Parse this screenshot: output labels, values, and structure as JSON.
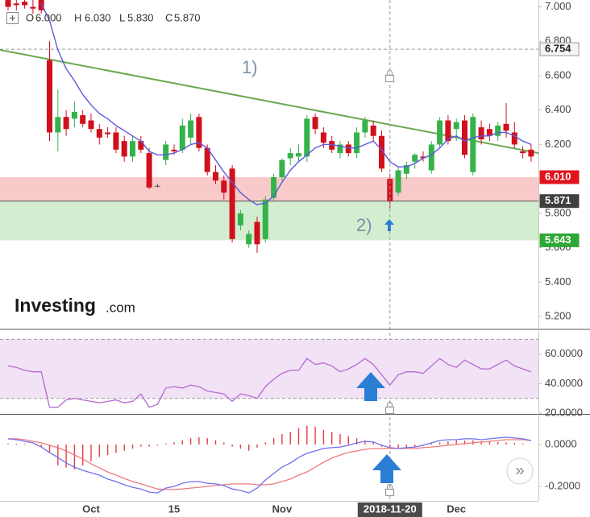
{
  "chart_data": [
    {
      "type": "candlestick",
      "readout": {
        "labels": [
          "O",
          "H",
          "L",
          "C"
        ],
        "values": [
          6.0,
          6.03,
          5.83,
          5.87
        ],
        "value_labels": [
          "6.000",
          "6.030",
          "5.830",
          "5.870"
        ]
      },
      "logo": [
        "Investing",
        ".com"
      ],
      "annotations": [
        "1)",
        "2)"
      ],
      "scroll_button": "»",
      "categories": [
        null,
        null,
        null,
        null,
        null,
        null,
        null,
        null,
        null,
        null,
        "Oct",
        null,
        null,
        null,
        null,
        null,
        null,
        null,
        null,
        null,
        "15",
        null,
        null,
        null,
        null,
        null,
        null,
        null,
        null,
        null,
        null,
        null,
        null,
        "Nov",
        null,
        null,
        null,
        null,
        null,
        null,
        null,
        null,
        null,
        null,
        null,
        null,
        "2018-11-20",
        null,
        null,
        null,
        null,
        null,
        null,
        null,
        "Dec",
        null,
        null,
        null,
        null,
        null,
        null,
        null,
        null,
        null
      ],
      "open": [
        7.06,
        7.02,
        7.03,
        7.0,
        7.04,
        6.69,
        6.27,
        6.36,
        6.35,
        6.37,
        6.34,
        6.29,
        6.27,
        6.27,
        6.22,
        6.13,
        6.22,
        6.15,
        5.96,
        6.11,
        6.17,
        6.17,
        6.24,
        6.36,
        6.18,
        6.04,
        5.99,
        6.06,
        5.73,
        5.62,
        5.75,
        5.65,
        5.89,
        6.01,
        6.12,
        6.13,
        6.13,
        6.36,
        6.27,
        6.22,
        6.15,
        6.2,
        6.15,
        6.27,
        6.31,
        6.25,
        6.0,
        5.92,
        6.03,
        6.1,
        6.13,
        6.05,
        6.2,
        6.34,
        6.29,
        6.34,
        6.04,
        6.3,
        6.29,
        6.25,
        6.32,
        6.27,
        6.16,
        6.17
      ],
      "high": [
        7.08,
        7.05,
        7.06,
        7.04,
        7.06,
        6.8,
        6.52,
        6.4,
        6.45,
        6.4,
        6.38,
        6.32,
        6.3,
        6.3,
        6.25,
        6.25,
        6.25,
        6.18,
        5.97,
        6.22,
        6.2,
        6.35,
        6.38,
        6.38,
        6.2,
        6.08,
        6.02,
        6.08,
        5.82,
        5.7,
        5.78,
        5.9,
        6.03,
        6.12,
        6.18,
        6.2,
        6.37,
        6.38,
        6.3,
        6.25,
        6.22,
        6.22,
        6.3,
        6.36,
        6.34,
        6.28,
        6.03,
        6.07,
        6.1,
        6.15,
        6.16,
        6.22,
        6.36,
        6.37,
        6.35,
        6.37,
        6.38,
        6.34,
        6.32,
        6.33,
        6.44,
        6.33,
        6.19,
        6.2
      ],
      "low": [
        6.98,
        6.98,
        6.99,
        6.96,
        6.96,
        6.22,
        6.16,
        6.25,
        6.3,
        6.3,
        6.27,
        6.2,
        6.24,
        6.15,
        6.1,
        6.1,
        6.15,
        5.94,
        5.95,
        6.08,
        6.14,
        6.15,
        6.2,
        6.16,
        6.02,
        5.97,
        5.88,
        5.63,
        5.7,
        5.6,
        5.57,
        5.63,
        5.87,
        5.99,
        6.08,
        6.1,
        6.1,
        6.26,
        6.18,
        6.15,
        6.12,
        6.13,
        6.12,
        6.24,
        6.22,
        6.04,
        5.83,
        5.9,
        6.0,
        6.06,
        6.1,
        6.03,
        6.18,
        6.2,
        6.22,
        6.12,
        6.02,
        6.2,
        6.22,
        6.22,
        6.24,
        6.18,
        6.12,
        6.1
      ],
      "close": [
        7.0,
        7.01,
        7.01,
        6.99,
        6.98,
        6.27,
        6.36,
        6.29,
        6.39,
        6.32,
        6.29,
        6.24,
        6.26,
        6.17,
        6.13,
        6.22,
        6.17,
        5.95,
        5.96,
        6.2,
        6.16,
        6.31,
        6.34,
        6.18,
        6.04,
        5.99,
        5.92,
        5.65,
        5.8,
        5.68,
        5.62,
        5.88,
        6.01,
        6.11,
        6.15,
        6.15,
        6.35,
        6.29,
        6.21,
        6.17,
        6.2,
        6.15,
        6.27,
        6.34,
        6.25,
        6.06,
        5.87,
        6.05,
        6.08,
        6.14,
        6.12,
        6.2,
        6.34,
        6.22,
        6.33,
        6.14,
        6.36,
        6.23,
        6.25,
        6.31,
        6.28,
        6.2,
        6.15,
        6.13
      ],
      "up_color": "#35b34a",
      "down_color": "#d0101c",
      "flat_color": "#555555",
      "moving_average": {
        "color": "#5b5bdc",
        "values": [
          null,
          null,
          null,
          null,
          7.02,
          6.92,
          6.75,
          6.64,
          6.57,
          6.49,
          6.43,
          6.38,
          6.35,
          6.31,
          6.28,
          6.25,
          6.22,
          6.16,
          6.14,
          6.14,
          6.15,
          6.17,
          6.2,
          6.21,
          6.18,
          6.11,
          6.04,
          5.98,
          5.92,
          5.88,
          5.85,
          5.86,
          5.9,
          5.98,
          6.05,
          6.1,
          6.14,
          6.18,
          6.2,
          6.2,
          6.19,
          6.18,
          6.18,
          6.2,
          6.22,
          6.17,
          6.1,
          6.07,
          6.07,
          6.09,
          6.12,
          6.14,
          6.18,
          6.23,
          6.25,
          6.22,
          6.24,
          6.25,
          6.25,
          6.27,
          6.27,
          6.25,
          6.22,
          6.2
        ]
      },
      "trendline": {
        "color": "#6aa84f",
        "start": 6.75,
        "end": 6.15
      },
      "zones": [
        {
          "from": 6.01,
          "to": 5.871,
          "color": "#f9caca"
        },
        {
          "from": 5.871,
          "to": 5.643,
          "color": "#d3edd1"
        }
      ],
      "levels": [
        {
          "value": 6.754,
          "label": "6.754",
          "box_color": "#f4f4f4",
          "text_color": "#222222",
          "line": "dashed"
        },
        {
          "value": 6.01,
          "label": "6.010",
          "box_color": "#e0141e",
          "text_color": "#ffffff",
          "line": "none"
        },
        {
          "value": 5.871,
          "label": "5.871",
          "box_color": "#3f3f3f",
          "text_color": "#ffffff",
          "line": "solid"
        },
        {
          "value": 5.643,
          "label": "5.643",
          "box_color": "#2ea836",
          "text_color": "#ffffff",
          "line": "none"
        }
      ],
      "ylim": [
        5.13,
        7.04
      ],
      "yticks": [
        {
          "value": 5.2,
          "label": "5.200"
        },
        {
          "value": 5.4,
          "label": "5.400"
        },
        {
          "value": 5.6,
          "label": "5.600"
        },
        {
          "value": 5.8,
          "label": "5.800"
        },
        {
          "value": 6.0,
          "label": "6.000"
        },
        {
          "value": 6.2,
          "label": "6.200"
        },
        {
          "value": 6.4,
          "label": "6.400"
        },
        {
          "value": 6.6,
          "label": "6.600"
        },
        {
          "value": 6.8,
          "label": "6.800"
        },
        {
          "value": 7.0,
          "label": "7.000"
        }
      ]
    },
    {
      "type": "line",
      "color": "#b46ad0",
      "values": [
        52,
        51,
        49,
        48,
        48,
        24,
        24,
        29,
        30,
        29,
        28,
        27,
        28,
        29,
        27,
        28,
        33,
        24,
        26,
        37,
        38,
        37,
        39,
        38,
        35,
        34,
        33,
        28,
        33,
        32,
        30,
        38,
        43,
        47,
        49,
        49,
        57,
        53,
        54,
        52,
        48,
        50,
        53,
        57,
        53,
        46,
        39,
        46,
        48,
        48,
        47,
        52,
        57,
        53,
        51,
        56,
        53,
        50,
        50,
        53,
        56,
        52,
        50,
        48
      ],
      "band": [
        30,
        70
      ],
      "band_color": "#f2e2f6",
      "ylim": [
        19.5,
        76.2
      ],
      "yticks": [
        {
          "value": 20,
          "label": "20.0000"
        },
        {
          "value": 40,
          "label": "40.0000"
        },
        {
          "value": 60,
          "label": "60.0000"
        }
      ]
    },
    {
      "type": "macd",
      "macd": {
        "color": "#7070f0",
        "values": [
          0.027,
          0.023,
          0.015,
          0.008,
          -0.012,
          -0.038,
          -0.062,
          -0.088,
          -0.108,
          -0.123,
          -0.135,
          -0.146,
          -0.165,
          -0.177,
          -0.192,
          -0.204,
          -0.212,
          -0.227,
          -0.231,
          -0.208,
          -0.2,
          -0.185,
          -0.177,
          -0.177,
          -0.185,
          -0.188,
          -0.196,
          -0.212,
          -0.219,
          -0.231,
          -0.208,
          -0.169,
          -0.138,
          -0.108,
          -0.088,
          -0.062,
          -0.042,
          -0.031,
          -0.019,
          -0.015,
          -0.012,
          -0.004,
          0.008,
          0.015,
          0.012,
          -0.004,
          -0.015,
          -0.019,
          -0.015,
          -0.012,
          -0.004,
          0.008,
          0.019,
          0.023,
          0.023,
          0.027,
          0.027,
          0.023,
          0.027,
          0.031,
          0.035,
          0.031,
          0.027,
          0.019
        ]
      },
      "signal": {
        "color": "#f07a7a",
        "values": [
          0.027,
          0.027,
          0.023,
          0.015,
          0.008,
          -0.004,
          -0.015,
          -0.031,
          -0.05,
          -0.069,
          -0.092,
          -0.112,
          -0.131,
          -0.146,
          -0.162,
          -0.177,
          -0.188,
          -0.2,
          -0.212,
          -0.215,
          -0.215,
          -0.212,
          -0.208,
          -0.204,
          -0.2,
          -0.196,
          -0.192,
          -0.188,
          -0.188,
          -0.188,
          -0.192,
          -0.192,
          -0.188,
          -0.177,
          -0.165,
          -0.146,
          -0.131,
          -0.108,
          -0.085,
          -0.065,
          -0.05,
          -0.038,
          -0.031,
          -0.023,
          -0.019,
          -0.019,
          -0.019,
          -0.019,
          -0.019,
          -0.019,
          -0.015,
          -0.012,
          -0.008,
          -0.004,
          0,
          0.004,
          0.008,
          0.012,
          0.015,
          0.019,
          0.023,
          0.023,
          0.023,
          0.019
        ]
      },
      "histogram": {
        "color": "#e8404a",
        "values": [
          0.005,
          0.004,
          0.003,
          0,
          -0.01,
          -0.04,
          -0.1,
          -0.11,
          -0.12,
          -0.1,
          -0.08,
          -0.06,
          -0.05,
          -0.04,
          -0.03,
          -0.02,
          -0.01,
          -0.01,
          -0.005,
          0.005,
          0.01,
          0.02,
          0.03,
          0.035,
          0.03,
          0.02,
          0.01,
          -0.01,
          -0.02,
          -0.03,
          -0.015,
          0.01,
          0.03,
          0.05,
          0.06,
          0.08,
          0.09,
          0.085,
          0.07,
          0.06,
          0.05,
          0.04,
          0.03,
          0.02,
          0.01,
          -0.01,
          -0.015,
          -0.02,
          -0.015,
          -0.01,
          -0.005,
          0.005,
          0.01,
          0.015,
          0.02,
          0.02,
          0.02,
          0.015,
          0.015,
          0.012,
          0.01,
          0.008,
          0.005,
          0
        ]
      },
      "ylim": [
        -0.269,
        0.142
      ],
      "yticks": [
        {
          "value": -0.2,
          "label": "-0.2000"
        },
        {
          "value": 0,
          "label": "0.0000"
        }
      ]
    }
  ]
}
